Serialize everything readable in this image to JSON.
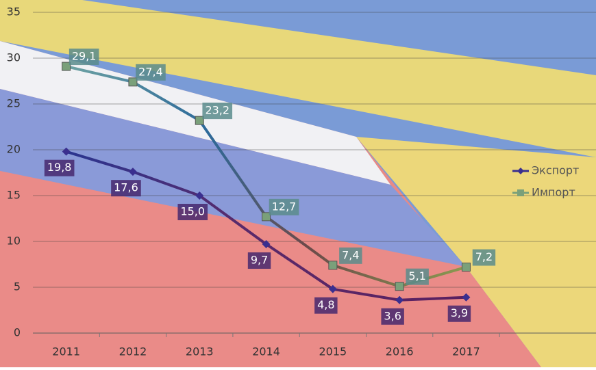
{
  "chart_data": {
    "type": "line",
    "categories": [
      "2011",
      "2012",
      "2013",
      "2014",
      "2015",
      "2016",
      "2017"
    ],
    "series": [
      {
        "name": "Экспорт",
        "color": "#3a2f8f",
        "values": [
          19.8,
          17.6,
          15.0,
          9.7,
          4.8,
          3.6,
          3.9
        ],
        "value_labels": [
          "19,8",
          "17,6",
          "15,0",
          "9,7",
          "4,8",
          "3,6",
          "3,9"
        ]
      },
      {
        "name": "Импорт",
        "color": "#7aa07a",
        "values": [
          29.1,
          27.4,
          23.2,
          12.7,
          7.4,
          5.1,
          7.2
        ],
        "value_labels": [
          "29,1",
          "27,4",
          "23,2",
          "12,7",
          "7,4",
          "5,1",
          "7,2"
        ]
      }
    ],
    "ylim": [
      0,
      35
    ],
    "yticks": [
      0,
      5,
      10,
      15,
      20,
      25,
      30,
      35
    ],
    "grid": true,
    "legend": "right"
  }
}
